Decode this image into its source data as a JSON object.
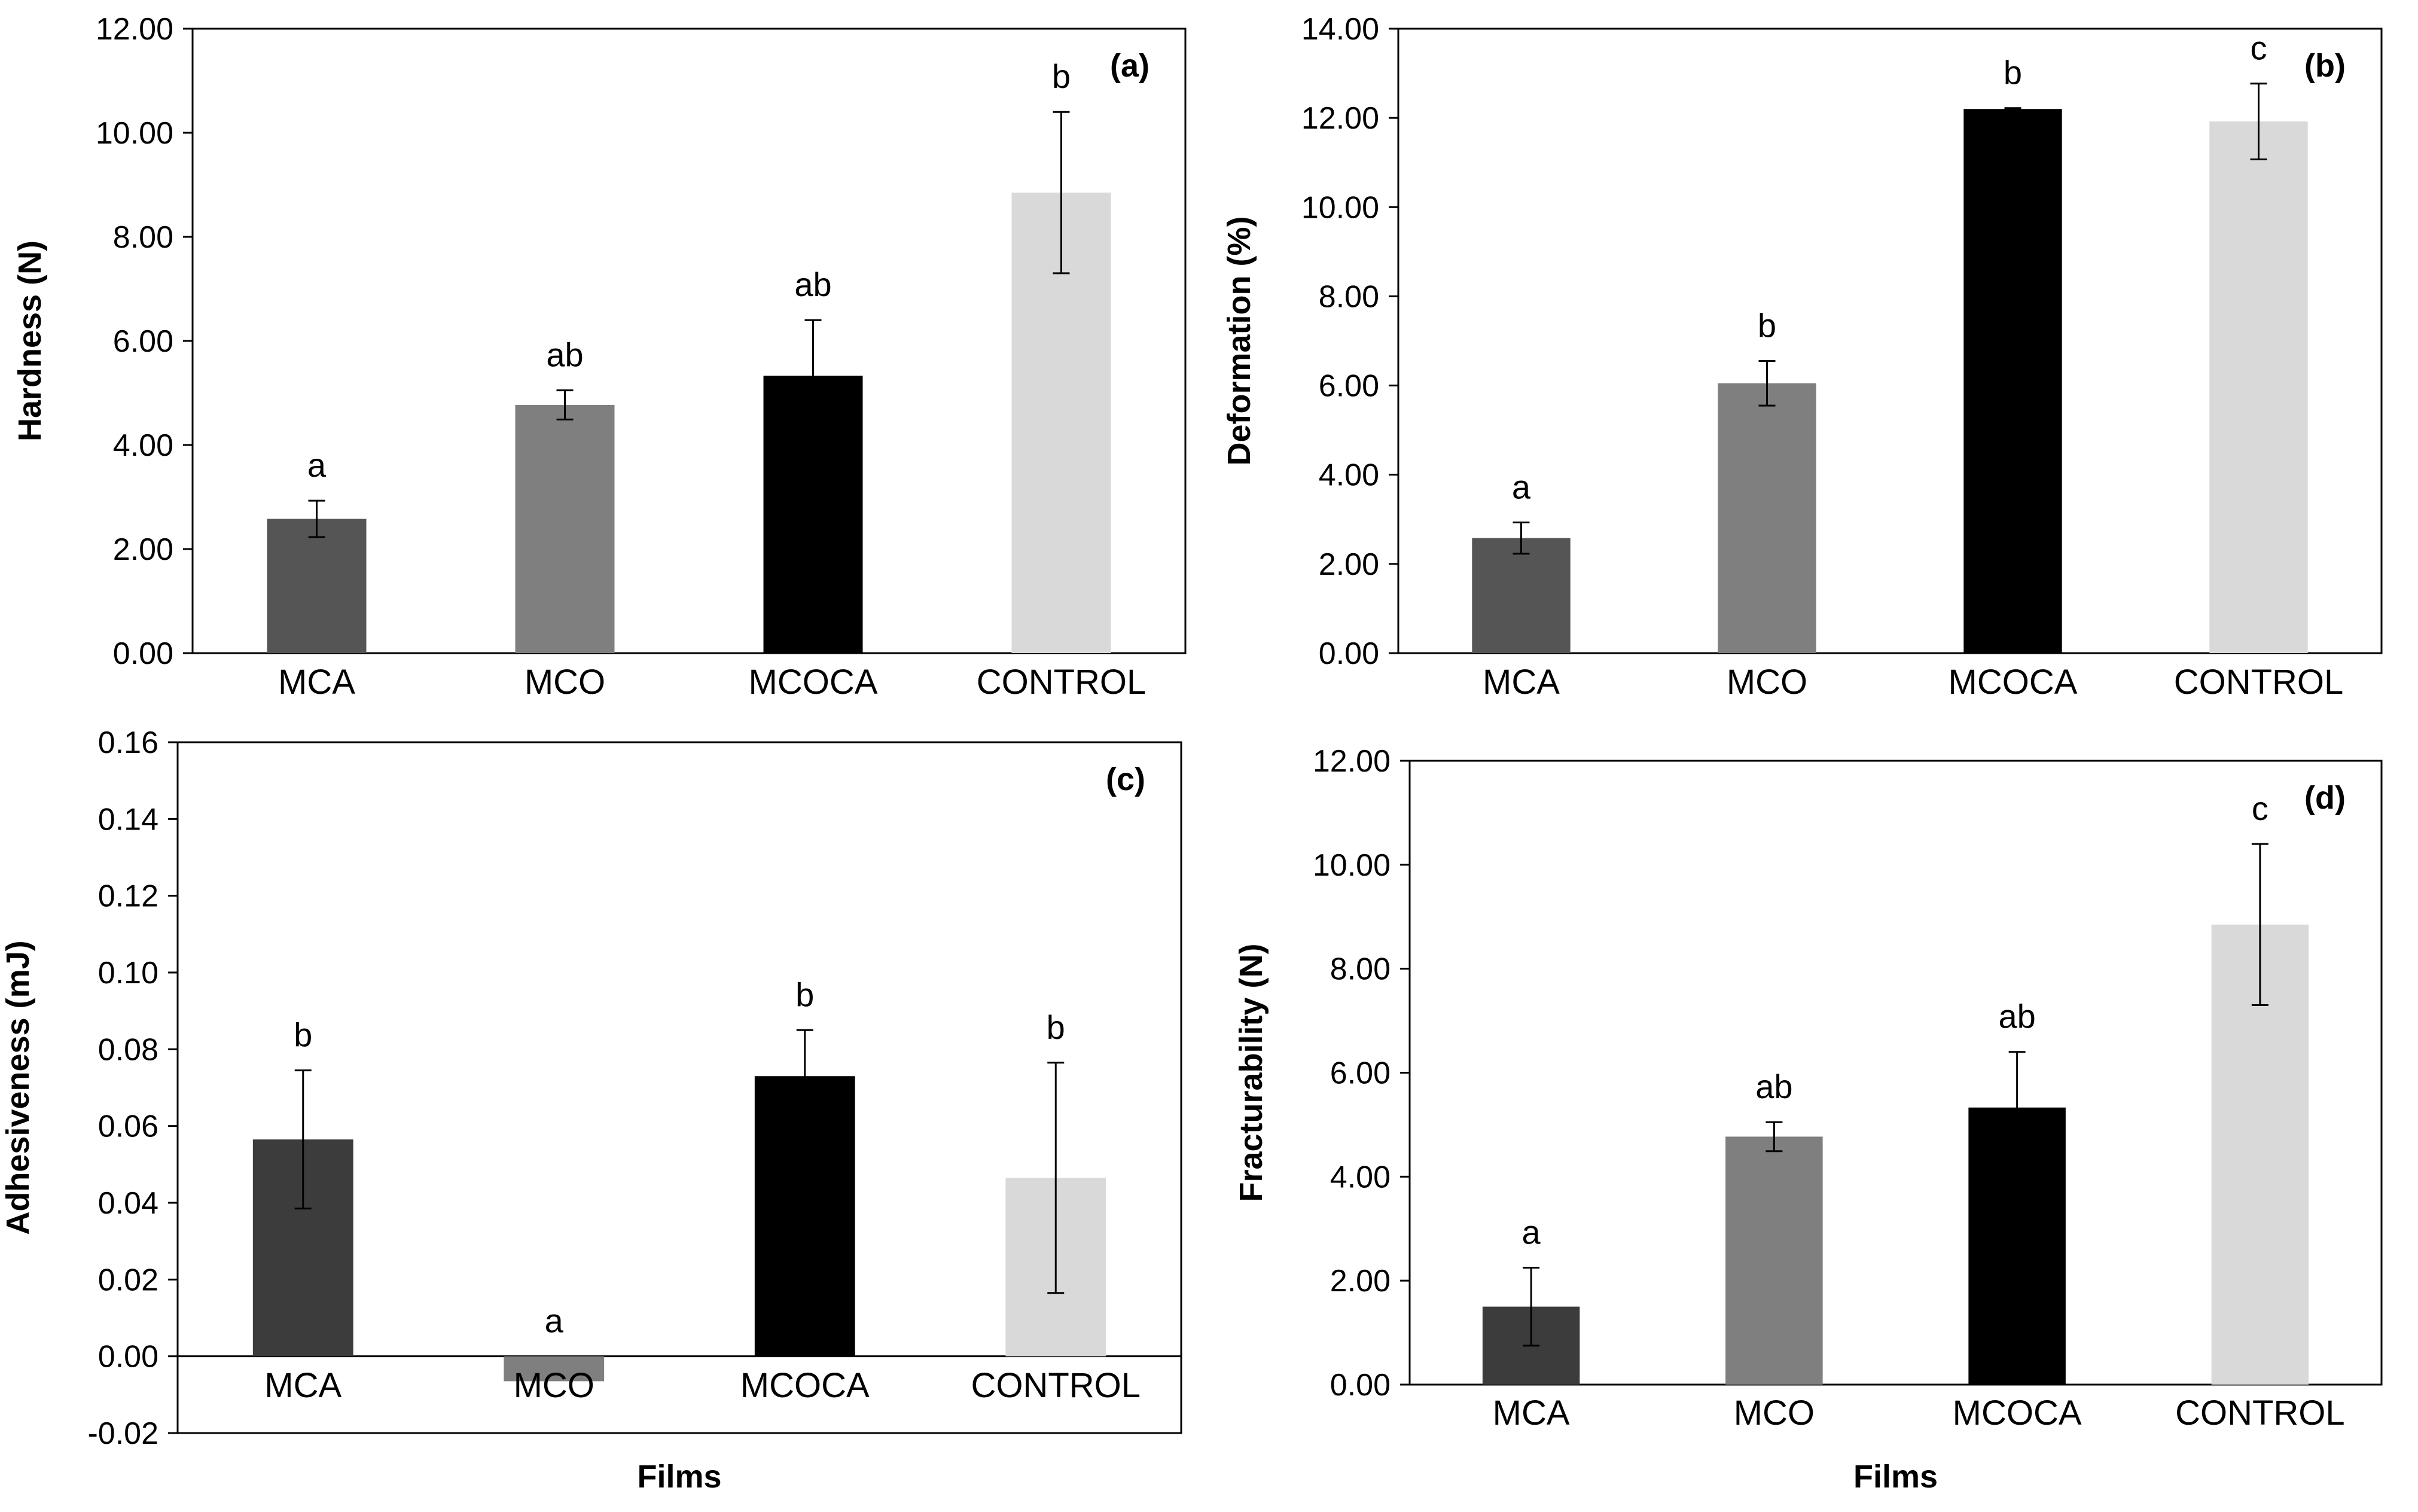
{
  "colors": {
    "MCA_dark": "#555555",
    "MCA_darker": "#3c3c3c",
    "MCO": "#7f7f7f",
    "MCOCA": "#000000",
    "CONTROL": "#d9d9d9",
    "axis": "#000000"
  },
  "chart_data": [
    {
      "type": "bar",
      "panel": "(a)",
      "categories": [
        "MCA",
        "MCO",
        "MCOCA",
        "CONTROL"
      ],
      "values": [
        2.58,
        4.77,
        5.33,
        8.85
      ],
      "errors": [
        0.35,
        0.28,
        1.07,
        1.55
      ],
      "letters": [
        "a",
        "ab",
        "ab",
        "b"
      ],
      "ylabel": "Hardness (N)",
      "xlabel": "",
      "ylim": [
        0,
        12
      ],
      "yticks": [
        "0.00",
        "2.00",
        "4.00",
        "6.00",
        "8.00",
        "10.00",
        "12.00"
      ],
      "colors": [
        "#555555",
        "#7f7f7f",
        "#000000",
        "#d9d9d9"
      ]
    },
    {
      "type": "bar",
      "panel": "(b)",
      "categories": [
        "MCA",
        "MCO",
        "MCOCA",
        "CONTROL"
      ],
      "values": [
        2.58,
        6.05,
        12.2,
        11.92
      ],
      "errors": [
        0.35,
        0.5,
        0.02,
        0.85
      ],
      "letters": [
        "a",
        "b",
        "b",
        "c"
      ],
      "ylabel": "Deformation (%)",
      "xlabel": "",
      "ylim": [
        0,
        14
      ],
      "yticks": [
        "0.00",
        "2.00",
        "4.00",
        "6.00",
        "8.00",
        "10.00",
        "12.00",
        "14.00"
      ],
      "colors": [
        "#555555",
        "#7f7f7f",
        "#000000",
        "#d9d9d9"
      ]
    },
    {
      "type": "bar",
      "panel": "(c)",
      "categories": [
        "MCA",
        "MCO",
        "MCOCA",
        "CONTROL"
      ],
      "values": [
        0.0565,
        -0.0065,
        0.073,
        0.0465
      ],
      "errors": [
        0.018,
        0,
        0.012,
        0.03
      ],
      "letters": [
        "b",
        "a",
        "b",
        "b"
      ],
      "ylabel": "Adhesiveness (mJ)",
      "xlabel": "Films",
      "ylim": [
        -0.02,
        0.16
      ],
      "yticks": [
        "-0.02",
        "0.00",
        "0.02",
        "0.04",
        "0.06",
        "0.08",
        "0.10",
        "0.12",
        "0.14",
        "0.16"
      ],
      "colors": [
        "#3c3c3c",
        "#7f7f7f",
        "#000000",
        "#d9d9d9"
      ]
    },
    {
      "type": "bar",
      "panel": "(d)",
      "categories": [
        "MCA",
        "MCO",
        "MCOCA",
        "CONTROL"
      ],
      "values": [
        1.5,
        4.77,
        5.33,
        8.85
      ],
      "errors": [
        0.75,
        0.28,
        1.07,
        1.55
      ],
      "letters": [
        "a",
        "ab",
        "ab",
        "c"
      ],
      "ylabel": "Fracturability (N)",
      "xlabel": "Films",
      "ylim": [
        0,
        12
      ],
      "yticks": [
        "0.00",
        "2.00",
        "4.00",
        "6.00",
        "8.00",
        "10.00",
        "12.00"
      ],
      "colors": [
        "#3c3c3c",
        "#7f7f7f",
        "#000000",
        "#d9d9d9"
      ]
    }
  ]
}
